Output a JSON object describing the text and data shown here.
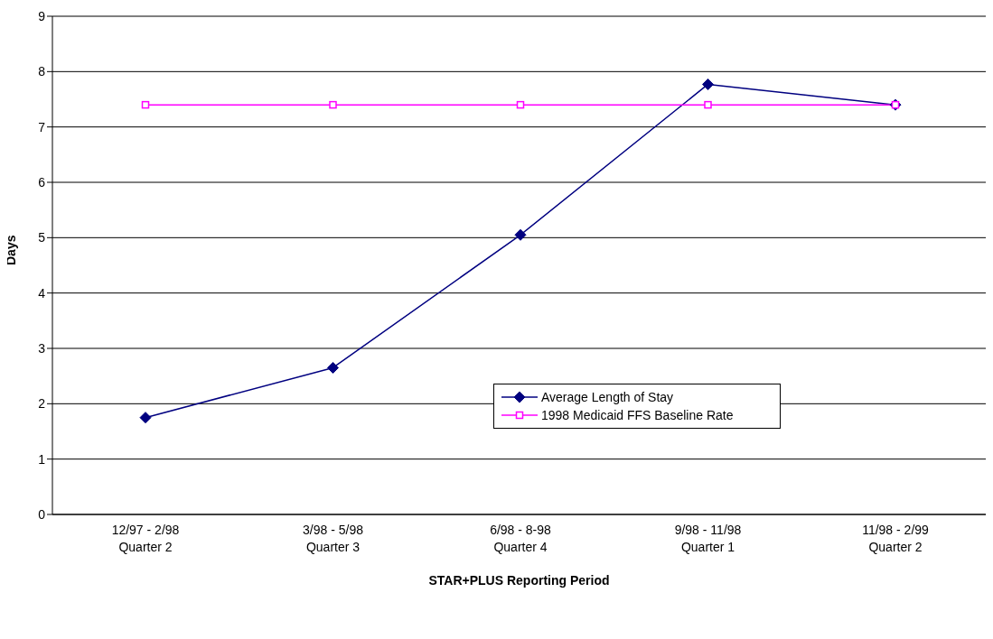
{
  "chart_data": {
    "type": "line",
    "xlabel": "STAR+PLUS Reporting Period",
    "ylabel": "Days",
    "categories": [
      "12/97 - 2/98\nQuarter 2",
      "3/98 - 5/98\nQuarter 3",
      "6/98 - 8-98\nQuarter 4",
      "9/98 - 11/98\nQuarter 1",
      "11/98 - 2/99\nQuarter 2"
    ],
    "series": [
      {
        "name": "Average Length of Stay",
        "color": "#000080",
        "marker": "diamond",
        "values": [
          1.75,
          2.65,
          5.05,
          7.77,
          7.4
        ]
      },
      {
        "name": "1998 Medicaid FFS Baseline Rate",
        "color": "#ff00ff",
        "marker": "square",
        "values": [
          7.4,
          7.4,
          7.4,
          7.4,
          7.4
        ]
      }
    ],
    "ylim": [
      0,
      9
    ],
    "yticks": [
      0,
      1,
      2,
      3,
      4,
      5,
      6,
      7,
      8,
      9
    ],
    "grid": "y",
    "legend": "bottom right"
  }
}
